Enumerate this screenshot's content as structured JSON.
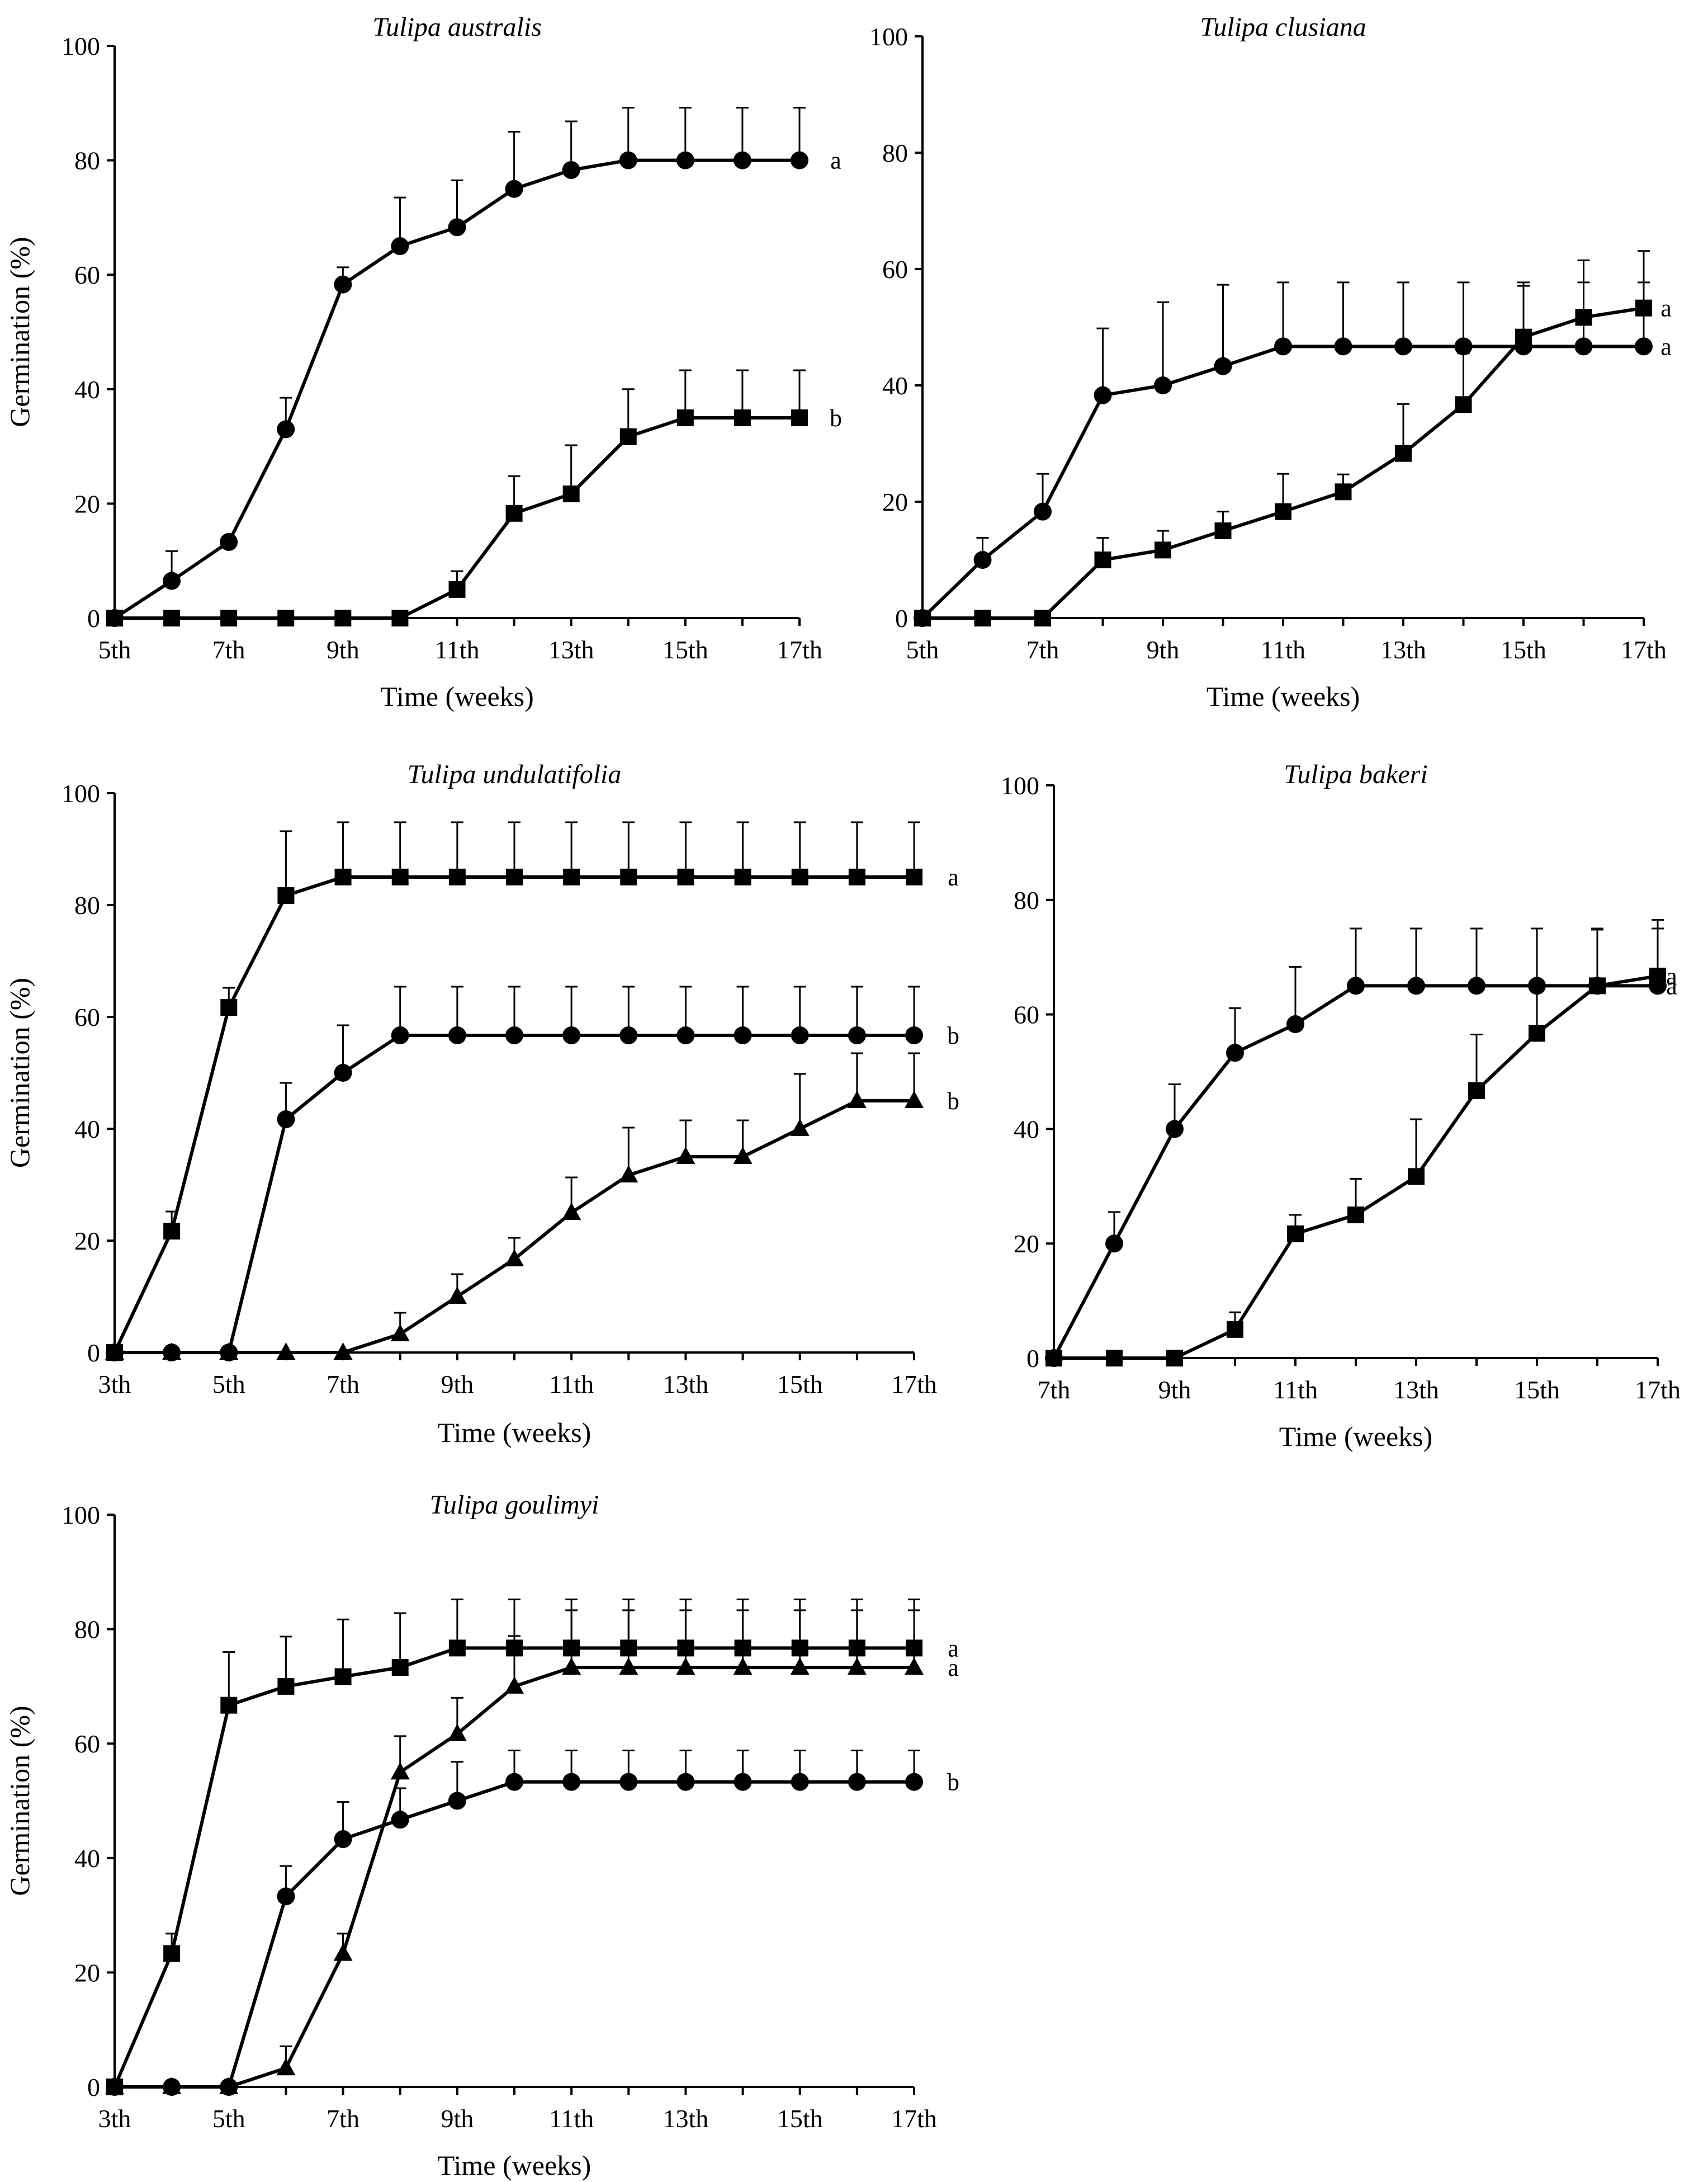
{
  "chart_data": [
    {
      "type": "line",
      "title": "Tulipa australis",
      "xlabel": "Time (weeks)",
      "ylabel": "Germination (%)",
      "x": [
        5,
        6,
        7,
        8,
        9,
        10,
        11,
        12,
        13,
        14,
        15,
        16,
        17
      ],
      "xlim": [
        5,
        17
      ],
      "ylim": [
        0,
        100
      ],
      "xticks": [
        5,
        7,
        9,
        11,
        13,
        15,
        17
      ],
      "xtick_labels": [
        "5th",
        "7th",
        "9th",
        "11th",
        "13th",
        "15th",
        "17th"
      ],
      "yticks": [
        0,
        20,
        40,
        60,
        80,
        100
      ],
      "ytick_labels": [
        "0",
        "20",
        "40",
        "60",
        "80",
        "100"
      ],
      "series": [
        {
          "name": "circle",
          "marker": "circle",
          "x": [
            5,
            6,
            7,
            8,
            9,
            10,
            11,
            12,
            13,
            14,
            15,
            16,
            17
          ],
          "values": [
            0,
            6.5,
            13.3,
            33,
            58.3,
            65,
            68.3,
            75,
            78.3,
            80,
            80,
            80,
            80
          ],
          "errors": [
            0,
            5.2,
            0,
            5.5,
            3,
            8.5,
            8.2,
            10,
            8.5,
            9.2,
            9.2,
            9.2,
            9.2
          ],
          "letter": "a"
        },
        {
          "name": "square",
          "marker": "square",
          "x": [
            5,
            6,
            7,
            8,
            9,
            10,
            11,
            12,
            13,
            14,
            15,
            16,
            17
          ],
          "values": [
            0,
            0,
            0,
            0,
            0,
            0,
            5,
            18.3,
            21.7,
            31.7,
            35,
            35,
            35
          ],
          "errors": [
            0,
            0,
            0,
            0,
            0,
            0,
            3.2,
            6.5,
            8.5,
            8.3,
            8.3,
            8.3,
            8.3
          ],
          "letter": "b"
        }
      ]
    },
    {
      "type": "line",
      "title": "Tulipa clusiana",
      "xlabel": "Time (weeks)",
      "ylabel": "",
      "x": [
        5,
        6,
        7,
        8,
        9,
        10,
        11,
        12,
        13,
        14,
        15,
        16,
        17
      ],
      "xlim": [
        5,
        17
      ],
      "ylim": [
        0,
        100
      ],
      "xticks": [
        5,
        7,
        9,
        11,
        13,
        15,
        17
      ],
      "xtick_labels": [
        "5th",
        "7th",
        "9th",
        "11th",
        "13th",
        "15th",
        "17th"
      ],
      "yticks": [
        0,
        20,
        40,
        60,
        80,
        100
      ],
      "ytick_labels": [
        "0",
        "20",
        "40",
        "60",
        "80",
        "100"
      ],
      "series": [
        {
          "name": "circle",
          "marker": "circle",
          "x": [
            5,
            6,
            7,
            8,
            9,
            10,
            11,
            12,
            13,
            14,
            15,
            16,
            17
          ],
          "values": [
            0,
            10,
            18.3,
            38.3,
            40,
            43.3,
            46.7,
            46.7,
            46.7,
            46.7,
            46.7,
            46.7,
            46.7
          ],
          "errors": [
            0,
            3.8,
            6.5,
            11.5,
            14.3,
            14,
            11,
            11,
            11,
            11,
            11,
            11,
            11
          ],
          "letter": "a"
        },
        {
          "name": "square",
          "marker": "square",
          "x": [
            5,
            6,
            7,
            8,
            9,
            10,
            11,
            12,
            13,
            14,
            15,
            16,
            17
          ],
          "values": [
            0,
            0,
            0,
            10,
            11.7,
            15,
            18.3,
            21.7,
            28.3,
            36.7,
            48.3,
            51.7,
            53.3
          ],
          "errors": [
            0,
            0,
            0,
            3.8,
            3.3,
            3.3,
            6.5,
            3,
            8.5,
            8.8,
            8.8,
            9.8,
            9.8
          ],
          "letter": "a"
        }
      ]
    },
    {
      "type": "line",
      "title": "Tulipa undulatifolia",
      "xlabel": "Time (weeks)",
      "ylabel": "Germination (%)",
      "x": [
        3,
        4,
        5,
        6,
        7,
        8,
        9,
        10,
        11,
        12,
        13,
        14,
        15,
        16,
        17
      ],
      "xlim": [
        3,
        17
      ],
      "ylim": [
        0,
        100
      ],
      "xticks": [
        3,
        5,
        7,
        9,
        11,
        13,
        15,
        17
      ],
      "xtick_labels": [
        "3th",
        "5th",
        "7th",
        "9th",
        "11th",
        "13th",
        "15th",
        "17th"
      ],
      "yticks": [
        0,
        20,
        40,
        60,
        80,
        100
      ],
      "ytick_labels": [
        "0",
        "20",
        "40",
        "60",
        "80",
        "100"
      ],
      "series": [
        {
          "name": "square",
          "marker": "square",
          "x": [
            3,
            4,
            5,
            6,
            7,
            8,
            9,
            10,
            11,
            12,
            13,
            14,
            15,
            16,
            17
          ],
          "values": [
            0,
            21.7,
            61.7,
            81.7,
            85,
            85,
            85,
            85,
            85,
            85,
            85,
            85,
            85,
            85,
            85
          ],
          "errors": [
            0,
            3.5,
            3.5,
            11.5,
            9.8,
            9.8,
            9.8,
            9.8,
            9.8,
            9.8,
            9.8,
            9.8,
            9.8,
            9.8,
            9.8
          ],
          "letter": "a"
        },
        {
          "name": "circle",
          "marker": "circle",
          "x": [
            3,
            4,
            5,
            6,
            7,
            8,
            9,
            10,
            11,
            12,
            13,
            14,
            15,
            16,
            17
          ],
          "values": [
            0,
            0,
            0,
            41.7,
            50,
            56.7,
            56.7,
            56.7,
            56.7,
            56.7,
            56.7,
            56.7,
            56.7,
            56.7,
            56.7
          ],
          "errors": [
            0,
            0,
            0,
            6.5,
            8.5,
            8.7,
            8.7,
            8.7,
            8.7,
            8.7,
            8.7,
            8.7,
            8.7,
            8.7,
            8.7
          ],
          "letter": "b"
        },
        {
          "name": "triangle",
          "marker": "triangle",
          "x": [
            3,
            4,
            5,
            6,
            7,
            8,
            9,
            10,
            11,
            12,
            13,
            14,
            15,
            16,
            17
          ],
          "values": [
            0,
            0,
            0,
            0,
            0,
            3.3,
            10,
            16.7,
            25,
            31.7,
            35,
            35,
            40,
            45,
            45
          ],
          "errors": [
            0,
            0,
            0,
            0,
            0,
            3.8,
            4,
            3.8,
            6.3,
            8.5,
            6.5,
            6.5,
            9.8,
            8.5,
            8.5
          ],
          "letter": "b"
        }
      ]
    },
    {
      "type": "line",
      "title": "Tulipa bakeri",
      "xlabel": "Time (weeks)",
      "ylabel": "",
      "x": [
        7,
        8,
        9,
        10,
        11,
        12,
        13,
        14,
        15,
        16,
        17
      ],
      "xlim": [
        7,
        17
      ],
      "ylim": [
        0,
        100
      ],
      "xticks": [
        7,
        9,
        11,
        13,
        15,
        17
      ],
      "xtick_labels": [
        "7th",
        "9th",
        "11th",
        "13th",
        "15th",
        "17th"
      ],
      "yticks": [
        0,
        20,
        40,
        60,
        80,
        100
      ],
      "ytick_labels": [
        "0",
        "20",
        "40",
        "60",
        "80",
        "100"
      ],
      "series": [
        {
          "name": "circle",
          "marker": "circle",
          "x": [
            7,
            8,
            9,
            10,
            11,
            12,
            13,
            14,
            15,
            16,
            17
          ],
          "values": [
            0,
            20,
            40,
            53.3,
            58.3,
            65,
            65,
            65,
            65,
            65,
            65
          ],
          "errors": [
            0,
            5.5,
            7.8,
            7.8,
            10,
            10,
            10,
            10,
            10,
            10,
            10
          ],
          "letter": "a"
        },
        {
          "name": "square",
          "marker": "square",
          "x": [
            7,
            8,
            9,
            10,
            11,
            12,
            13,
            14,
            15,
            16,
            17
          ],
          "values": [
            0,
            0,
            0,
            5,
            21.7,
            25,
            31.7,
            46.7,
            56.7,
            65,
            66.7
          ],
          "errors": [
            0,
            0,
            0,
            3,
            3.3,
            6.3,
            10,
            9.8,
            8.5,
            9.8,
            9.8
          ],
          "letter": "a"
        }
      ]
    },
    {
      "type": "line",
      "title": "Tulipa goulimyi",
      "xlabel": "Time (weeks)",
      "ylabel": "Germination (%)",
      "x": [
        3,
        4,
        5,
        6,
        7,
        8,
        9,
        10,
        11,
        12,
        13,
        14,
        15,
        16,
        17
      ],
      "xlim": [
        3,
        17
      ],
      "ylim": [
        0,
        100
      ],
      "xticks": [
        3,
        5,
        7,
        9,
        11,
        13,
        15,
        17
      ],
      "xtick_labels": [
        "3th",
        "5th",
        "7th",
        "9th",
        "11th",
        "13th",
        "15th",
        "17th"
      ],
      "yticks": [
        0,
        20,
        40,
        60,
        80,
        100
      ],
      "ytick_labels": [
        "0",
        "20",
        "40",
        "60",
        "80",
        "100"
      ],
      "series": [
        {
          "name": "square",
          "marker": "square",
          "x": [
            3,
            4,
            5,
            6,
            7,
            8,
            9,
            10,
            11,
            12,
            13,
            14,
            15,
            16,
            17
          ],
          "values": [
            0,
            23.3,
            66.7,
            70,
            71.7,
            73.3,
            76.7,
            76.7,
            76.7,
            76.7,
            76.7,
            76.7,
            76.7,
            76.7,
            76.7
          ],
          "errors": [
            0,
            3.5,
            9.3,
            8.7,
            10,
            9.5,
            8.5,
            8.5,
            8.5,
            8.5,
            8.5,
            8.5,
            8.5,
            8.5,
            8.5
          ],
          "letter": "a"
        },
        {
          "name": "triangle",
          "marker": "triangle",
          "x": [
            3,
            4,
            5,
            6,
            7,
            8,
            9,
            10,
            11,
            12,
            13,
            14,
            15,
            16,
            17
          ],
          "values": [
            0,
            0,
            0,
            3.3,
            23.3,
            55,
            61.7,
            70,
            73.3,
            73.3,
            73.3,
            73.3,
            73.3,
            73.3,
            73.3
          ],
          "errors": [
            0,
            0,
            0,
            3.8,
            3.5,
            6.3,
            6.3,
            8.8,
            10,
            10,
            10,
            10,
            10,
            10,
            10
          ],
          "letter": "a"
        },
        {
          "name": "circle",
          "marker": "circle",
          "x": [
            3,
            4,
            5,
            6,
            7,
            8,
            9,
            10,
            11,
            12,
            13,
            14,
            15,
            16,
            17
          ],
          "values": [
            0,
            0,
            0,
            33.3,
            43.3,
            46.7,
            50,
            53.3,
            53.3,
            53.3,
            53.3,
            53.3,
            53.3,
            53.3,
            53.3
          ],
          "errors": [
            0,
            0,
            0,
            5.3,
            6.5,
            5.5,
            6.8,
            5.5,
            5.5,
            5.5,
            5.5,
            5.5,
            5.5,
            5.5,
            5.5
          ],
          "letter": "b"
        }
      ]
    }
  ]
}
